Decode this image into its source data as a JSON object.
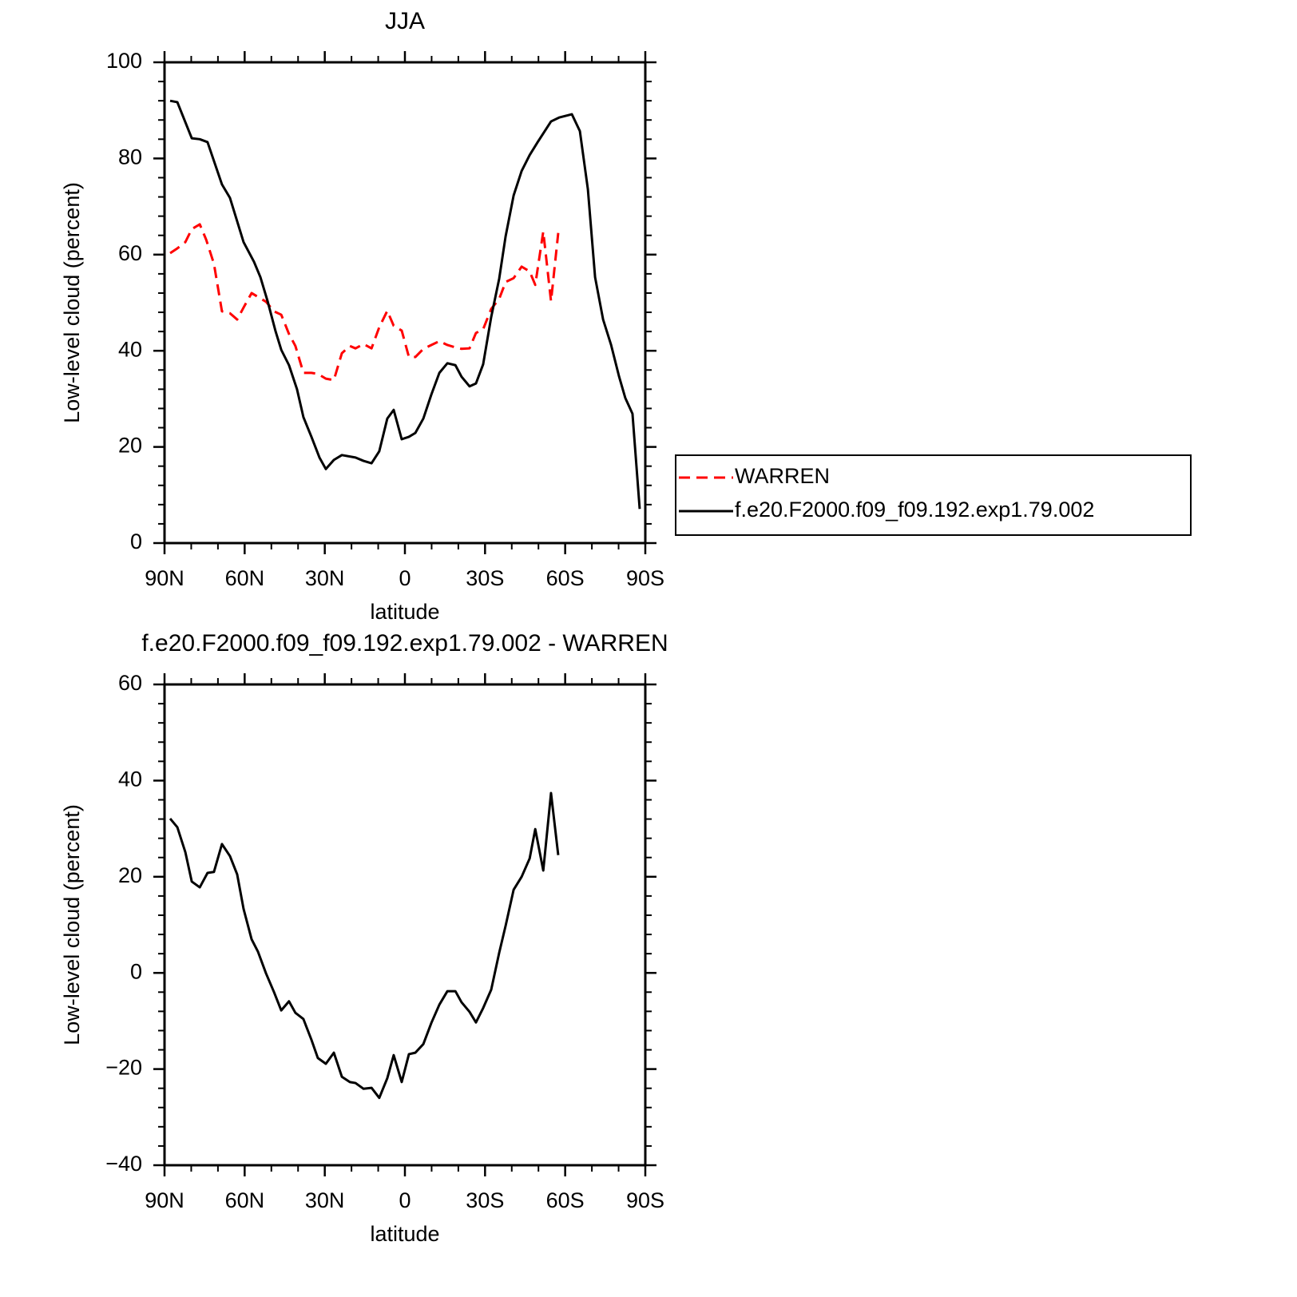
{
  "chart_data": [
    {
      "type": "line",
      "title": "JJA",
      "xlabel": "latitude",
      "ylabel": "Low-level cloud (percent)",
      "xlim": [
        90,
        -90
      ],
      "xticks": [
        {
          "value": 90,
          "label": "90N"
        },
        {
          "value": 60,
          "label": "60N"
        },
        {
          "value": 30,
          "label": "30N"
        },
        0,
        {
          "value": -30,
          "label": "30S"
        },
        {
          "value": -60,
          "label": "60S"
        },
        {
          "value": -90,
          "label": "90S"
        }
      ],
      "ylim": [
        0,
        100
      ],
      "yticks": [
        0,
        20,
        40,
        60,
        80,
        100
      ],
      "legend": "right",
      "series": [
        {
          "name": "WARREN",
          "color": "#ff0000",
          "dashed": true,
          "x": [
            87.9,
            85.2,
            82.2,
            79.8,
            76.8,
            74.4,
            71.5,
            68.5,
            65.5,
            62.8,
            60.4,
            57.4,
            55,
            52,
            49,
            46.3,
            43.4,
            41,
            38,
            35,
            32.6,
            29.6,
            26.6,
            23.6,
            20.6,
            18.5,
            15.5,
            12.5,
            9.6,
            6.6,
            4.2,
            1.2,
            -1.5,
            -3.9,
            -6.9,
            -9.9,
            -12.9,
            -15.9,
            -18.9,
            -21.2,
            -24.2,
            -26.6,
            -29.3,
            -32.3,
            -35.3,
            -37.7,
            -40.7,
            -43.7,
            -46.7,
            -48.8,
            -51.8,
            -54.7,
            -57.4
          ],
          "values": [
            60.3,
            61.3,
            62.6,
            65.3,
            66.3,
            63.1,
            58.1,
            48.2,
            47.8,
            46.5,
            49,
            52,
            51.2,
            50.2,
            48.2,
            47.5,
            43.5,
            41,
            35.4,
            35.4,
            35.2,
            34.2,
            33.9,
            39.5,
            41,
            40.5,
            41.4,
            40.5,
            44.9,
            48.3,
            45.2,
            44.2,
            38.7,
            38.7,
            40.4,
            41.2,
            42,
            41.2,
            40.7,
            40.4,
            40.5,
            43.7,
            44.5,
            48.7,
            50.8,
            54.3,
            55.1,
            57.5,
            56.5,
            53.7,
            64.8,
            50.3,
            64.5
          ]
        },
        {
          "name": "f.e20.F2000.f09_f09.192.exp1.79.002",
          "color": "#000000",
          "dashed": false,
          "x": [
            87.9,
            85.2,
            79.8,
            76.8,
            73.9,
            68.5,
            65.5,
            60.4,
            56.5,
            54.1,
            51.4,
            48.4,
            46.3,
            43.4,
            40.4,
            38,
            35,
            32,
            29.6,
            26.6,
            23.6,
            18.5,
            15.5,
            12.5,
            9.6,
            6.6,
            4.2,
            1.2,
            -1.5,
            -3.9,
            -6.9,
            -9.9,
            -12.9,
            -15.9,
            -18.9,
            -21.2,
            -24.2,
            -26.6,
            -29.3,
            -32.3,
            -35.3,
            -37.7,
            -40.7,
            -43.7,
            -46.7,
            -49.7,
            -52.6,
            -54.7,
            -57.7,
            -62.5,
            -65.5,
            -68.5,
            -71.2,
            -74.2,
            -77.2,
            -80.2,
            -82.5,
            -85.2,
            -87.9
          ],
          "values": [
            92,
            91.7,
            84.2,
            84,
            83.4,
            74.6,
            71.8,
            62.6,
            58.5,
            55.3,
            50.3,
            44,
            40.2,
            37,
            32,
            26.2,
            22.1,
            17.8,
            15.4,
            17.3,
            18.3,
            17.8,
            17.1,
            16.6,
            19.1,
            25.9,
            27.7,
            21.6,
            22.1,
            22.9,
            25.9,
            30.9,
            35.4,
            37.4,
            37,
            34.6,
            32.6,
            33.2,
            37.2,
            47,
            55,
            63.8,
            72.3,
            77.4,
            80.7,
            83.4,
            85.9,
            87.7,
            88.5,
            89.2,
            85.7,
            73.6,
            55.3,
            46.5,
            41.2,
            34.6,
            30.2,
            26.9,
            7.1
          ]
        }
      ]
    },
    {
      "type": "line",
      "title": "f.e20.F2000.f09_f09.192.exp1.79.002 - WARREN",
      "xlabel": "latitude",
      "ylabel": "Low-level cloud (percent)",
      "xlim": [
        90,
        -90
      ],
      "xticks": [
        {
          "value": 90,
          "label": "90N"
        },
        {
          "value": 60,
          "label": "60N"
        },
        {
          "value": 30,
          "label": "30N"
        },
        0,
        {
          "value": -30,
          "label": "30S"
        },
        {
          "value": -60,
          "label": "60S"
        },
        {
          "value": -90,
          "label": "90S"
        }
      ],
      "ylim": [
        -40,
        60
      ],
      "yticks": [
        -40,
        -20,
        0,
        20,
        40,
        60
      ],
      "series": [
        {
          "color": "#000000",
          "dashed": false,
          "x": [
            87.9,
            85.2,
            82.2,
            79.8,
            76.8,
            73.9,
            71.5,
            68.5,
            65.5,
            62.8,
            60.4,
            57.4,
            55,
            52,
            49,
            46.3,
            43.4,
            41,
            38,
            35,
            32.6,
            29.6,
            26.6,
            23.6,
            20.6,
            18.5,
            15.5,
            12.5,
            9.6,
            6.6,
            4.2,
            1.2,
            -1.5,
            -3.9,
            -6.9,
            -9.9,
            -12.9,
            -15.9,
            -18.9,
            -21.2,
            -24.2,
            -26.6,
            -29.3,
            -32.3,
            -35.3,
            -37.7,
            -40.7,
            -43.7,
            -46.7,
            -48.8,
            -51.8,
            -54.7,
            -57.4
          ],
          "values": [
            32.1,
            30.3,
            25.1,
            19,
            17.8,
            20.8,
            21,
            26.8,
            24.3,
            20.5,
            13.3,
            7,
            4.4,
            -0.1,
            -4,
            -7.8,
            -5.9,
            -8.3,
            -9.6,
            -13.9,
            -17.7,
            -18.9,
            -16.6,
            -21.6,
            -22.7,
            -22.9,
            -24.1,
            -23.9,
            -26,
            -21.9,
            -17.1,
            -22.7,
            -16.9,
            -16.6,
            -14.8,
            -10.4,
            -6.6,
            -3.8,
            -3.8,
            -6.1,
            -8.1,
            -10.3,
            -7.3,
            -3.5,
            4.2,
            9.8,
            17.3,
            20,
            23.8,
            29.9,
            21.3,
            37.4,
            24.5
          ]
        }
      ]
    }
  ]
}
